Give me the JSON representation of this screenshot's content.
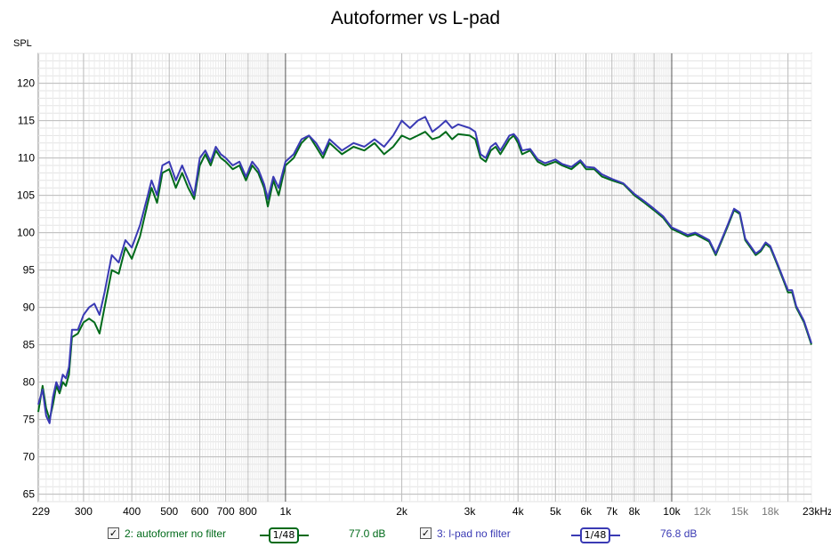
{
  "chart_data": {
    "type": "line",
    "title": "Autoformer vs L-pad",
    "ylabel": "SPL",
    "xlabel": "",
    "x_scale": "log",
    "xlim": [
      229,
      23000
    ],
    "ylim": [
      64,
      124
    ],
    "grid": true,
    "x_tick_values": [
      229,
      300,
      400,
      500,
      600,
      700,
      800,
      1000,
      2000,
      3000,
      4000,
      5000,
      6000,
      7000,
      8000,
      10000,
      12000,
      15000,
      18000,
      23000
    ],
    "x_tick_labels": [
      "229",
      "300",
      "400",
      "500",
      "600",
      "700",
      "800",
      "1k",
      "2k",
      "3k",
      "4k",
      "5k",
      "6k",
      "7k",
      "8k",
      "10k",
      "12k",
      "15k",
      "18k",
      "23kHz"
    ],
    "y_ticks": [
      65,
      70,
      75,
      80,
      85,
      90,
      95,
      100,
      105,
      110,
      115,
      120
    ],
    "series": [
      {
        "name": "2: autoformer no filter",
        "color": "#006a1a",
        "smoothing": "1/48",
        "level": "77.0 dB",
        "points": [
          [
            229,
            76
          ],
          [
            235,
            79.5
          ],
          [
            240,
            76.5
          ],
          [
            245,
            75
          ],
          [
            250,
            77
          ],
          [
            255,
            79.5
          ],
          [
            260,
            78.5
          ],
          [
            265,
            80
          ],
          [
            270,
            79.5
          ],
          [
            275,
            81
          ],
          [
            280,
            86
          ],
          [
            290,
            86.5
          ],
          [
            300,
            88
          ],
          [
            310,
            88.5
          ],
          [
            320,
            88
          ],
          [
            330,
            86.5
          ],
          [
            340,
            90
          ],
          [
            355,
            95
          ],
          [
            370,
            94.5
          ],
          [
            385,
            98
          ],
          [
            400,
            96.5
          ],
          [
            420,
            99.5
          ],
          [
            440,
            104
          ],
          [
            450,
            106
          ],
          [
            465,
            104
          ],
          [
            480,
            108
          ],
          [
            500,
            108.5
          ],
          [
            520,
            106
          ],
          [
            540,
            108
          ],
          [
            560,
            106
          ],
          [
            580,
            104.5
          ],
          [
            600,
            109
          ],
          [
            620,
            110.5
          ],
          [
            640,
            109
          ],
          [
            660,
            111
          ],
          [
            680,
            110
          ],
          [
            700,
            109.5
          ],
          [
            730,
            108.5
          ],
          [
            760,
            109
          ],
          [
            790,
            107
          ],
          [
            820,
            109
          ],
          [
            850,
            108
          ],
          [
            880,
            106
          ],
          [
            900,
            103.5
          ],
          [
            930,
            107
          ],
          [
            960,
            105
          ],
          [
            1000,
            109
          ],
          [
            1050,
            110
          ],
          [
            1100,
            112
          ],
          [
            1150,
            113
          ],
          [
            1200,
            111.5
          ],
          [
            1250,
            110
          ],
          [
            1300,
            112
          ],
          [
            1400,
            110.5
          ],
          [
            1500,
            111.5
          ],
          [
            1600,
            111
          ],
          [
            1700,
            112
          ],
          [
            1800,
            110.5
          ],
          [
            1900,
            111.5
          ],
          [
            2000,
            113
          ],
          [
            2100,
            112.5
          ],
          [
            2200,
            113
          ],
          [
            2300,
            113.5
          ],
          [
            2400,
            112.5
          ],
          [
            2500,
            112.8
          ],
          [
            2600,
            113.5
          ],
          [
            2700,
            112.5
          ],
          [
            2800,
            113.2
          ],
          [
            3000,
            113
          ],
          [
            3100,
            112.5
          ],
          [
            3200,
            110
          ],
          [
            3300,
            109.5
          ],
          [
            3400,
            111
          ],
          [
            3500,
            111.5
          ],
          [
            3600,
            110.5
          ],
          [
            3700,
            111.5
          ],
          [
            3800,
            112.5
          ],
          [
            3900,
            113
          ],
          [
            4000,
            112
          ],
          [
            4100,
            110.5
          ],
          [
            4300,
            111
          ],
          [
            4500,
            109.5
          ],
          [
            4700,
            109
          ],
          [
            5000,
            109.5
          ],
          [
            5200,
            109
          ],
          [
            5500,
            108.5
          ],
          [
            5800,
            109.5
          ],
          [
            6000,
            108.5
          ],
          [
            6300,
            108.5
          ],
          [
            6600,
            107.5
          ],
          [
            7000,
            107
          ],
          [
            7500,
            106.5
          ],
          [
            8000,
            105
          ],
          [
            8500,
            104
          ],
          [
            9000,
            103
          ],
          [
            9500,
            102
          ],
          [
            10000,
            100.5
          ],
          [
            10500,
            100
          ],
          [
            11000,
            99.5
          ],
          [
            11500,
            99.8
          ],
          [
            12000,
            99.3
          ],
          [
            12500,
            98.8
          ],
          [
            13000,
            97
          ],
          [
            13500,
            99
          ],
          [
            14000,
            101
          ],
          [
            14500,
            103
          ],
          [
            15000,
            102.5
          ],
          [
            15500,
            99
          ],
          [
            16000,
            98
          ],
          [
            16500,
            97
          ],
          [
            17000,
            97.5
          ],
          [
            17500,
            98.5
          ],
          [
            18000,
            98
          ],
          [
            18500,
            96.5
          ],
          [
            19000,
            95
          ],
          [
            19500,
            93.5
          ],
          [
            20000,
            92
          ],
          [
            20500,
            92
          ],
          [
            21000,
            90
          ],
          [
            22000,
            88
          ],
          [
            23000,
            85
          ]
        ]
      },
      {
        "name": "3: l-pad no filter",
        "color": "#3a3ab4",
        "smoothing": "1/48",
        "level": "76.8 dB",
        "points": [
          [
            229,
            77
          ],
          [
            235,
            79
          ],
          [
            240,
            75.5
          ],
          [
            245,
            74.5
          ],
          [
            250,
            78
          ],
          [
            255,
            80
          ],
          [
            260,
            79
          ],
          [
            265,
            81
          ],
          [
            270,
            80.5
          ],
          [
            275,
            82
          ],
          [
            280,
            87
          ],
          [
            290,
            87
          ],
          [
            300,
            89
          ],
          [
            310,
            90
          ],
          [
            320,
            90.5
          ],
          [
            330,
            89
          ],
          [
            340,
            92
          ],
          [
            355,
            97
          ],
          [
            370,
            96
          ],
          [
            385,
            99
          ],
          [
            400,
            98
          ],
          [
            420,
            101
          ],
          [
            440,
            105
          ],
          [
            450,
            107
          ],
          [
            465,
            105
          ],
          [
            480,
            109
          ],
          [
            500,
            109.5
          ],
          [
            520,
            107
          ],
          [
            540,
            109
          ],
          [
            560,
            107
          ],
          [
            580,
            105
          ],
          [
            600,
            110
          ],
          [
            620,
            111
          ],
          [
            640,
            109.5
          ],
          [
            660,
            111.5
          ],
          [
            680,
            110.5
          ],
          [
            700,
            110
          ],
          [
            730,
            109
          ],
          [
            760,
            109.5
          ],
          [
            790,
            107.5
          ],
          [
            820,
            109.5
          ],
          [
            850,
            108.5
          ],
          [
            880,
            106.5
          ],
          [
            900,
            104.5
          ],
          [
            930,
            107.5
          ],
          [
            960,
            106
          ],
          [
            1000,
            109.5
          ],
          [
            1050,
            110.5
          ],
          [
            1100,
            112.5
          ],
          [
            1150,
            113
          ],
          [
            1200,
            112
          ],
          [
            1250,
            110.5
          ],
          [
            1300,
            112.5
          ],
          [
            1400,
            111
          ],
          [
            1500,
            112
          ],
          [
            1600,
            111.5
          ],
          [
            1700,
            112.5
          ],
          [
            1800,
            111.5
          ],
          [
            1900,
            113
          ],
          [
            2000,
            115
          ],
          [
            2100,
            114
          ],
          [
            2200,
            115
          ],
          [
            2300,
            115.5
          ],
          [
            2400,
            113.5
          ],
          [
            2500,
            114.2
          ],
          [
            2600,
            115
          ],
          [
            2700,
            114
          ],
          [
            2800,
            114.5
          ],
          [
            3000,
            114
          ],
          [
            3100,
            113.5
          ],
          [
            3200,
            110.5
          ],
          [
            3300,
            110
          ],
          [
            3400,
            111.5
          ],
          [
            3500,
            112
          ],
          [
            3600,
            111
          ],
          [
            3700,
            112
          ],
          [
            3800,
            113
          ],
          [
            3900,
            113.2
          ],
          [
            4000,
            112.5
          ],
          [
            4100,
            111
          ],
          [
            4300,
            111.2
          ],
          [
            4500,
            109.8
          ],
          [
            4700,
            109.3
          ],
          [
            5000,
            109.8
          ],
          [
            5200,
            109.2
          ],
          [
            5500,
            108.8
          ],
          [
            5800,
            109.7
          ],
          [
            6000,
            108.8
          ],
          [
            6300,
            108.7
          ],
          [
            6600,
            107.8
          ],
          [
            7000,
            107.2
          ],
          [
            7500,
            106.6
          ],
          [
            8000,
            105.2
          ],
          [
            8500,
            104.2
          ],
          [
            9000,
            103.2
          ],
          [
            9500,
            102.2
          ],
          [
            10000,
            100.7
          ],
          [
            10500,
            100.2
          ],
          [
            11000,
            99.7
          ],
          [
            11500,
            100
          ],
          [
            12000,
            99.5
          ],
          [
            12500,
            99
          ],
          [
            13000,
            97.2
          ],
          [
            13500,
            99.2
          ],
          [
            14000,
            101.2
          ],
          [
            14500,
            103.2
          ],
          [
            15000,
            102.7
          ],
          [
            15500,
            99.2
          ],
          [
            16000,
            98.2
          ],
          [
            16500,
            97.2
          ],
          [
            17000,
            97.7
          ],
          [
            17500,
            98.7
          ],
          [
            18000,
            98.2
          ],
          [
            18500,
            96.7
          ],
          [
            19000,
            95.2
          ],
          [
            19500,
            93.7
          ],
          [
            20000,
            92.3
          ],
          [
            20500,
            92.3
          ],
          [
            21000,
            90.2
          ],
          [
            22000,
            88.2
          ],
          [
            23000,
            85.2
          ]
        ]
      }
    ]
  },
  "legend": {
    "items": [
      {
        "checkbox": "✓",
        "name": "2: autoformer no filter",
        "smoothing": "1/48",
        "level": "77.0 dB",
        "color": "#006a1a"
      },
      {
        "checkbox": "✓",
        "name": "3: l-pad no filter",
        "smoothing": "1/48",
        "level": "76.8 dB",
        "color": "#3a3ab4"
      }
    ]
  }
}
